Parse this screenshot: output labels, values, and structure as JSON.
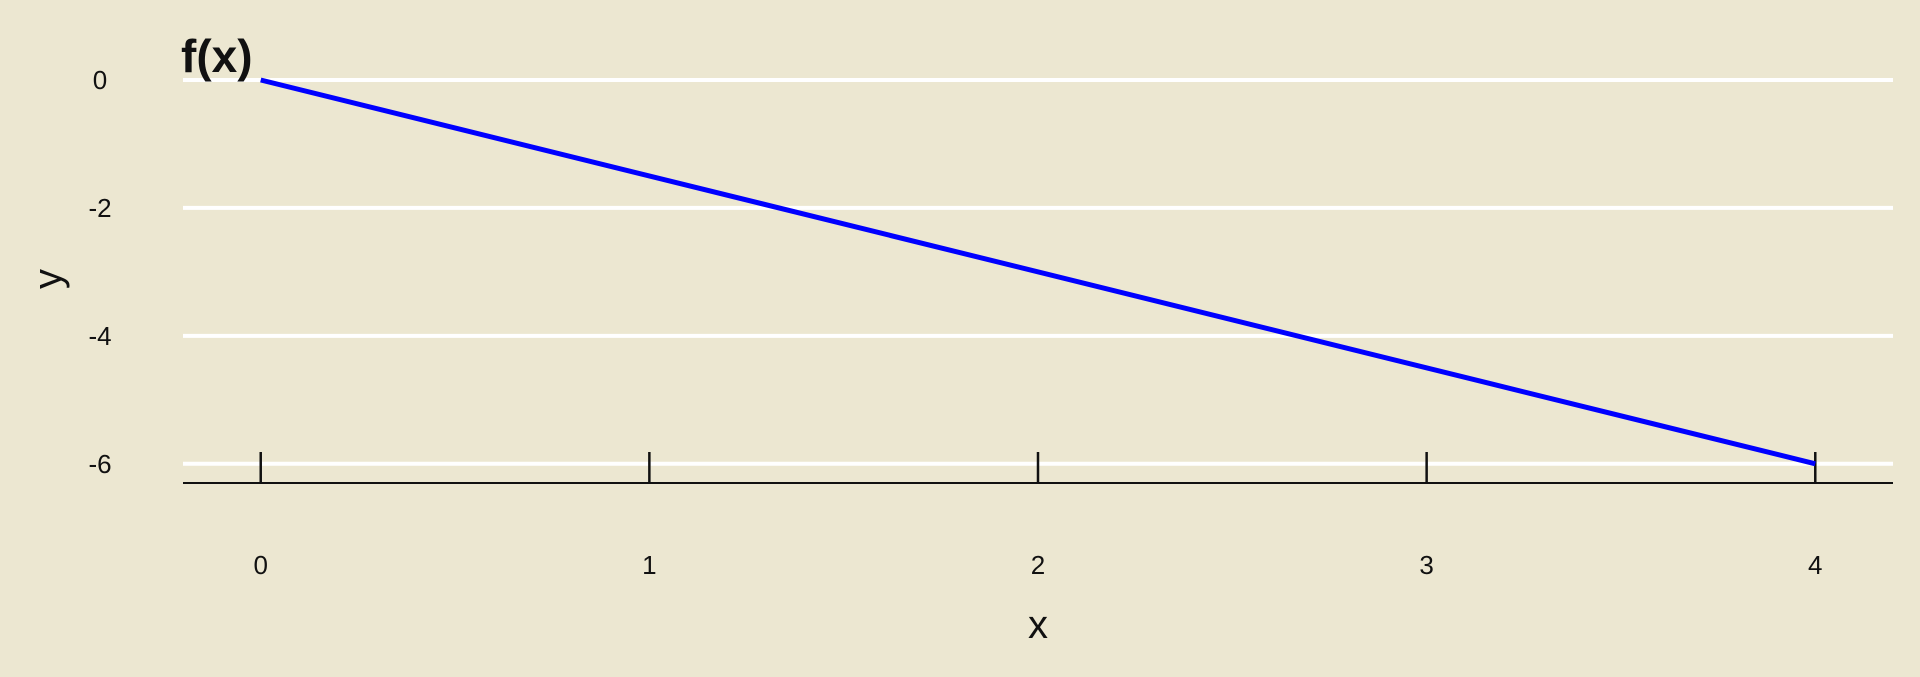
{
  "chart_data": {
    "type": "line",
    "title": "f(x)",
    "xlabel": "x",
    "ylabel": "y",
    "xlim": [
      -0.2,
      4.2
    ],
    "ylim": [
      -6.3,
      0.25
    ],
    "x_ticks": [
      0,
      1,
      2,
      3,
      4
    ],
    "y_ticks": [
      0,
      -2,
      -4,
      -6
    ],
    "x_tick_labels": [
      "0",
      "1",
      "2",
      "3",
      "4"
    ],
    "y_tick_labels": [
      "0",
      "-2",
      "-4",
      "-6"
    ],
    "grid": "horizontal",
    "series": [
      {
        "x": [
          0,
          4
        ],
        "y": [
          0,
          -6
        ]
      }
    ]
  },
  "colors": {
    "background": "#ece7d1",
    "grid": "#ffffff",
    "line": "#0000ff",
    "axis": "#111111"
  }
}
